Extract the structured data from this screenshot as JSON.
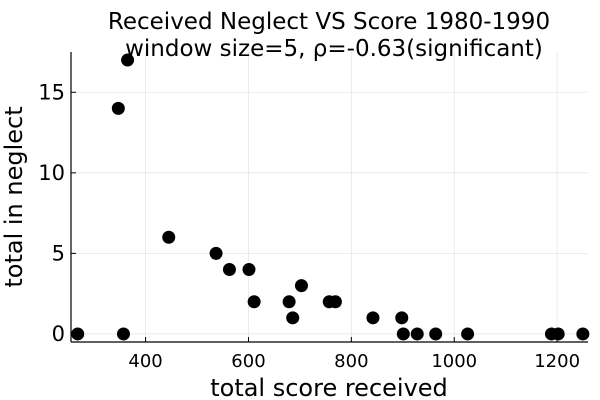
{
  "chart_data": {
    "type": "scatter",
    "title_line1": "Received Neglect VS Score 1980-1990",
    "title_line2": "window size=5, ρ=-0.63(significant)",
    "xlabel": "total score received",
    "ylabel": "total in neglect",
    "xlim": [
      255,
      1260
    ],
    "ylim": [
      -0.5,
      17.5
    ],
    "x_ticks": [
      400,
      600,
      800,
      1000,
      1200
    ],
    "y_ticks": [
      0,
      5,
      10,
      15
    ],
    "grid": true,
    "legend": false,
    "marker_color": "#000000",
    "points": [
      {
        "x": 268,
        "y": 0
      },
      {
        "x": 347,
        "y": 14
      },
      {
        "x": 357,
        "y": 0
      },
      {
        "x": 365,
        "y": 17
      },
      {
        "x": 445,
        "y": 6
      },
      {
        "x": 537,
        "y": 5
      },
      {
        "x": 563,
        "y": 4
      },
      {
        "x": 601,
        "y": 4
      },
      {
        "x": 611,
        "y": 2
      },
      {
        "x": 679,
        "y": 2
      },
      {
        "x": 686,
        "y": 1
      },
      {
        "x": 703,
        "y": 3
      },
      {
        "x": 757,
        "y": 2
      },
      {
        "x": 769,
        "y": 2
      },
      {
        "x": 842,
        "y": 1
      },
      {
        "x": 898,
        "y": 1
      },
      {
        "x": 901,
        "y": 0
      },
      {
        "x": 928,
        "y": 0
      },
      {
        "x": 964,
        "y": 0
      },
      {
        "x": 1026,
        "y": 0
      },
      {
        "x": 1189,
        "y": 0
      },
      {
        "x": 1202,
        "y": 0
      },
      {
        "x": 1250,
        "y": 0
      }
    ]
  }
}
